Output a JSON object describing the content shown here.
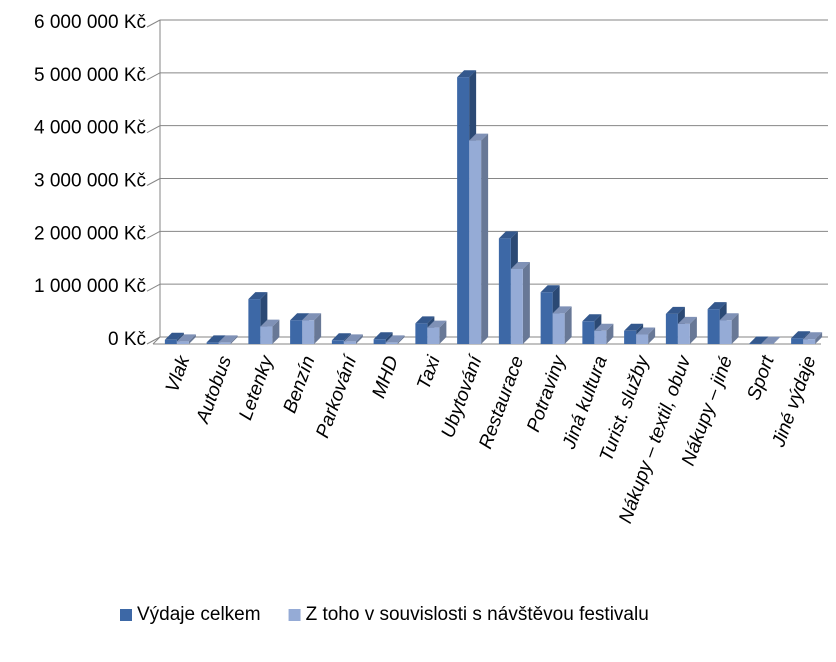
{
  "chart_data": {
    "type": "bar",
    "categories": [
      "Vlak",
      "Autobus",
      "Letenky",
      "Benzín",
      "Parkování",
      "MHD",
      "Taxi",
      "Ubytování",
      "Restaurace",
      "Potraviny",
      "Jiná kultura",
      "Turist. služby",
      "Nákupy – textil, obuv",
      "Nákupy – jiné",
      "Sport",
      "Jiné výdaje"
    ],
    "series": [
      {
        "name": "Výdaje celkem",
        "color": "#3d68a6",
        "values": [
          80000,
          30000,
          850000,
          450000,
          70000,
          90000,
          390000,
          5050000,
          2000000,
          980000,
          430000,
          250000,
          570000,
          660000,
          10000,
          110000
        ]
      },
      {
        "name": "Z toho v souvislosti s návštěvou festivalu",
        "color": "#95abd6",
        "values": [
          50000,
          30000,
          330000,
          450000,
          50000,
          30000,
          310000,
          3850000,
          1420000,
          580000,
          250000,
          180000,
          380000,
          450000,
          5000,
          90000
        ]
      }
    ],
    "ylim": [
      0,
      6000000
    ],
    "yticks": [
      {
        "value": 0,
        "label": "0 Kč"
      },
      {
        "value": 1000000,
        "label": "1 000 000 Kč"
      },
      {
        "value": 2000000,
        "label": "2 000 000 Kč"
      },
      {
        "value": 3000000,
        "label": "3 000 000 Kč"
      },
      {
        "value": 4000000,
        "label": "4 000 000 Kč"
      },
      {
        "value": 5000000,
        "label": "5 000 000 Kč"
      },
      {
        "value": 6000000,
        "label": "6 000 000 Kč"
      }
    ],
    "grid": true,
    "legend": "bottom"
  }
}
